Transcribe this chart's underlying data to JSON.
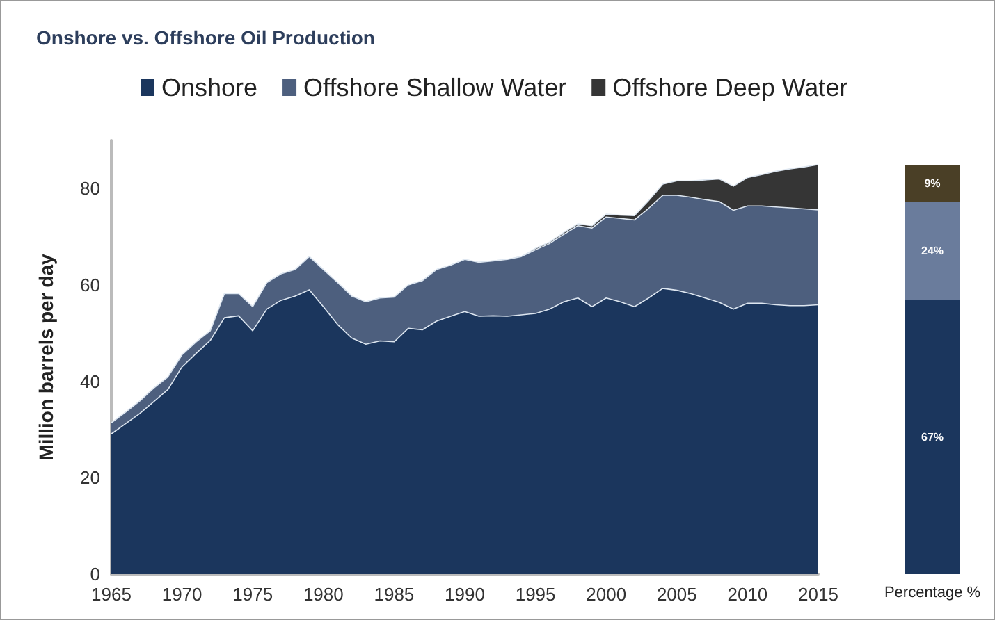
{
  "chart_data": [
    {
      "type": "area",
      "title": "Onshore vs. Offshore Oil Production",
      "ylabel": "Million barrels per day",
      "stacked": true,
      "legend": "top",
      "grid": false,
      "x": [
        1965,
        1966,
        1967,
        1968,
        1969,
        1970,
        1971,
        1972,
        1973,
        1974,
        1975,
        1976,
        1977,
        1978,
        1979,
        1980,
        1981,
        1982,
        1983,
        1984,
        1985,
        1986,
        1987,
        1988,
        1989,
        1990,
        1991,
        1992,
        1993,
        1994,
        1995,
        1996,
        1997,
        1998,
        1999,
        2000,
        2001,
        2002,
        2003,
        2004,
        2005,
        2006,
        2007,
        2008,
        2009,
        2010,
        2011,
        2012,
        2013,
        2014,
        2015
      ],
      "xlim": [
        1965,
        2015
      ],
      "xticks": [
        1965,
        1970,
        1975,
        1980,
        1985,
        1990,
        1995,
        2000,
        2005,
        2010,
        2015
      ],
      "ylim": [
        0,
        90
      ],
      "yticks": [
        0,
        20,
        40,
        60,
        80
      ],
      "series": [
        {
          "name": "Onshore",
          "color": "#1b365d",
          "values": [
            29.1,
            31.2,
            33.3,
            35.8,
            38.3,
            43.0,
            45.8,
            48.5,
            53.2,
            53.6,
            50.5,
            55.0,
            56.8,
            57.7,
            59.0,
            55.5,
            51.8,
            49.0,
            47.7,
            48.4,
            48.2,
            51.0,
            50.7,
            52.5,
            53.5,
            54.5,
            53.5,
            53.6,
            53.5,
            53.8,
            54.1,
            55.0,
            56.5,
            57.3,
            55.5,
            57.3,
            56.5,
            55.5,
            57.3,
            59.3,
            58.9,
            58.2,
            57.3,
            56.4,
            55.0,
            56.2,
            56.2,
            55.9,
            55.7,
            55.7,
            55.9
          ]
        },
        {
          "name": "Offshore Shallow Water",
          "color": "#4d5f7e",
          "values": [
            2.3,
            2.4,
            2.6,
            2.8,
            2.6,
            2.5,
            2.4,
            2.0,
            5.0,
            4.6,
            5.0,
            5.5,
            5.5,
            5.5,
            6.9,
            7.7,
            8.7,
            8.7,
            8.8,
            8.9,
            9.3,
            9.0,
            10.2,
            10.7,
            10.6,
            10.8,
            11.2,
            11.4,
            11.8,
            12.1,
            13.2,
            13.6,
            14.0,
            15.0,
            16.3,
            16.8,
            17.3,
            18.0,
            18.6,
            19.3,
            19.7,
            20.0,
            20.4,
            20.9,
            20.5,
            20.2,
            20.2,
            20.3,
            20.3,
            20.1,
            19.7
          ]
        },
        {
          "name": "Offshore Deep Water",
          "color": "#353535",
          "values": [
            0,
            0,
            0,
            0,
            0,
            0,
            0,
            0,
            0,
            0,
            0,
            0,
            0,
            0,
            0,
            0,
            0,
            0,
            0,
            0,
            0,
            0,
            0,
            0,
            0,
            0,
            0,
            0,
            0,
            0,
            0.3,
            0.3,
            0.4,
            0.4,
            0.5,
            0.6,
            0.7,
            0.9,
            1.6,
            2.3,
            3.0,
            3.4,
            4.1,
            4.7,
            5.0,
            5.9,
            6.5,
            7.4,
            8.1,
            8.7,
            9.4
          ]
        }
      ]
    },
    {
      "type": "bar",
      "stacked": true,
      "categories": [
        "Percentage %"
      ],
      "ylim": [
        0,
        100
      ],
      "tick_labels": "x",
      "series": [
        {
          "color": "#1b365d",
          "values": [
            67
          ],
          "value_labels": [
            "67%"
          ]
        },
        {
          "color": "#6a7c9c",
          "values": [
            24
          ],
          "value_labels": [
            "24%"
          ]
        },
        {
          "color": "#4a3f26",
          "values": [
            9
          ],
          "value_labels": [
            "9%"
          ]
        }
      ]
    }
  ]
}
